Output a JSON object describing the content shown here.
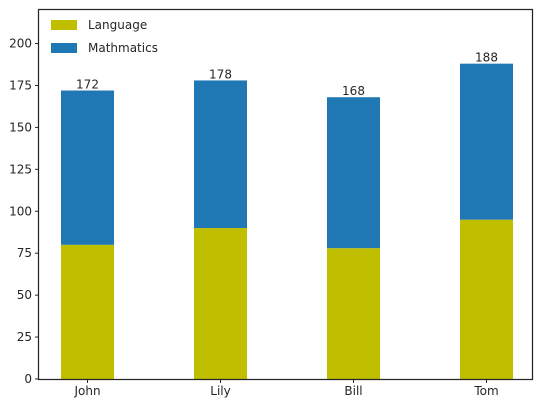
{
  "chart_data": {
    "type": "bar",
    "stacked": true,
    "categories": [
      "John",
      "Lily",
      "Bill",
      "Tom"
    ],
    "series": [
      {
        "name": "Language",
        "values": [
          80,
          90,
          78,
          95
        ],
        "color": "#bfbf00"
      },
      {
        "name": "Mathmatics",
        "values": [
          92,
          88,
          90,
          93
        ],
        "color": "#1f77b4"
      }
    ],
    "totals": [
      "172",
      "178",
      "168",
      "188"
    ],
    "ylim": [
      0,
      220
    ],
    "yticks": [
      "0",
      "25",
      "50",
      "75",
      "100",
      "125",
      "150",
      "175",
      "200"
    ],
    "grid": false,
    "legend": "top-left"
  }
}
